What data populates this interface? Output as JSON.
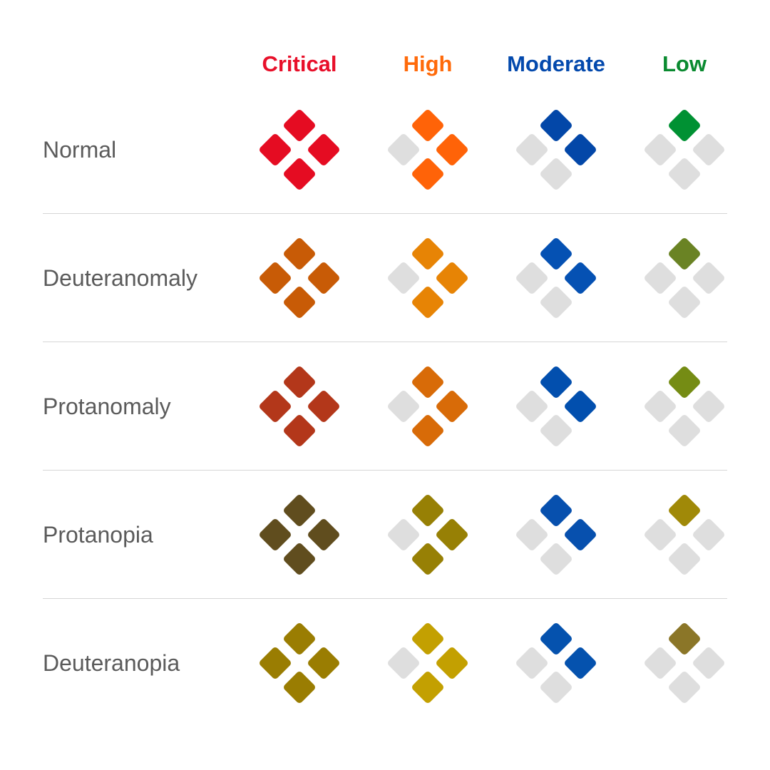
{
  "levels": [
    {
      "label": "Critical",
      "color": "#e8102a",
      "filled": [
        "top",
        "left",
        "right",
        "bottom"
      ]
    },
    {
      "label": "High",
      "color": "#ff6a0a",
      "filled": [
        "top",
        "right",
        "bottom"
      ]
    },
    {
      "label": "Moderate",
      "color": "#0349ad",
      "filled": [
        "top",
        "right"
      ]
    },
    {
      "label": "Low",
      "color": "#0a8a30",
      "filled": [
        "top"
      ]
    }
  ],
  "empty_color": "#dedede",
  "rows": [
    {
      "label": "Normal",
      "colors": [
        "#e50c22",
        "#ff6308",
        "#0347a8",
        "#009133"
      ]
    },
    {
      "label": "Deuteranomaly",
      "colors": [
        "#c85b06",
        "#e78405",
        "#0551b3",
        "#6a8324"
      ]
    },
    {
      "label": "Protanomaly",
      "colors": [
        "#b3371a",
        "#d86b08",
        "#024fae",
        "#758c14"
      ]
    },
    {
      "label": "Protanopia",
      "colors": [
        "#604d1e",
        "#978005",
        "#0750ae",
        "#a08908"
      ]
    },
    {
      "label": "Deuteranopia",
      "colors": [
        "#9a7d02",
        "#c3a001",
        "#0552ae",
        "#8b7628"
      ]
    }
  ]
}
